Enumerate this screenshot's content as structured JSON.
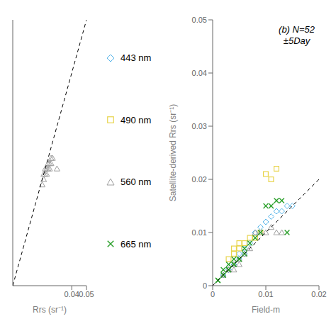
{
  "chart_data": [
    {
      "type": "scatter",
      "xlabel": "Rrs (sr⁻¹)",
      "xlim": [
        0,
        0.05
      ],
      "ylim": [
        0,
        0.05
      ],
      "xticks": [
        0.04,
        0.05
      ],
      "yticks": [],
      "grid": false,
      "series": [
        {
          "color": "#A0A0A0",
          "marker": "triangle",
          "x": [
            0.02,
            0.021,
            0.021,
            0.022,
            0.022,
            0.023,
            0.023,
            0.024,
            0.024,
            0.025,
            0.025,
            0.026,
            0.026,
            0.027,
            0.03
          ],
          "values": [
            0.019,
            0.02,
            0.021,
            0.021,
            0.022,
            0.021,
            0.022,
            0.022,
            0.023,
            0.022,
            0.023,
            0.024,
            0.023,
            0.024,
            0.022
          ]
        },
        {
          "type": "line",
          "line_style": "dashed",
          "color": "#000000",
          "x": [
            0,
            0.05
          ],
          "values": [
            0,
            0.05
          ]
        }
      ]
    },
    {
      "type": "scatter",
      "xlabel": "Field-m",
      "ylabel": "Satellite-derived Rrs (sr⁻¹)",
      "annotation": "(b) N=52\n±5Day",
      "xlim": [
        0,
        0.02
      ],
      "ylim": [
        0,
        0.05
      ],
      "xticks": [
        0,
        0.01,
        0.02
      ],
      "yticks": [
        0,
        0.01,
        0.02,
        0.03,
        0.04,
        0.05
      ],
      "grid": false,
      "series": [
        {
          "name": "443 nm",
          "color": "#56B4E9",
          "marker": "diamond",
          "x": [
            0.002,
            0.003,
            0.003,
            0.004,
            0.004,
            0.005,
            0.005,
            0.005,
            0.006,
            0.006,
            0.007,
            0.008,
            0.009,
            0.01,
            0.011,
            0.012,
            0.013,
            0.014,
            0.015
          ],
          "values": [
            0.002,
            0.003,
            0.003,
            0.004,
            0.004,
            0.005,
            0.005,
            0.006,
            0.006,
            0.007,
            0.008,
            0.01,
            0.011,
            0.012,
            0.013,
            0.014,
            0.014,
            0.015,
            0.015
          ]
        },
        {
          "name": "490 nm",
          "color": "#E8D44D",
          "marker": "square",
          "x": [
            0.003,
            0.004,
            0.004,
            0.005,
            0.005,
            0.006,
            0.007,
            0.008,
            0.009,
            0.01,
            0.011,
            0.012
          ],
          "values": [
            0.005,
            0.006,
            0.007,
            0.007,
            0.008,
            0.008,
            0.009,
            0.009,
            0.01,
            0.021,
            0.02,
            0.022
          ]
        },
        {
          "name": "560 nm",
          "color": "#A0A0A0",
          "marker": "triangle",
          "x": [
            0.002,
            0.003,
            0.003,
            0.004,
            0.004,
            0.005,
            0.005,
            0.006,
            0.007,
            0.008,
            0.009,
            0.01,
            0.011,
            0.012,
            0.013
          ],
          "values": [
            0.002,
            0.003,
            0.003,
            0.003,
            0.004,
            0.004,
            0.005,
            0.006,
            0.007,
            0.01,
            0.01,
            0.01,
            0.011,
            0.01,
            0.01
          ]
        },
        {
          "name": "665 nm",
          "color": "#2CA02C",
          "marker": "x",
          "x": [
            0.001,
            0.001,
            0.002,
            0.002,
            0.002,
            0.003,
            0.003,
            0.003,
            0.004,
            0.004,
            0.004,
            0.005,
            0.005,
            0.006,
            0.006,
            0.007,
            0.008,
            0.009,
            0.01,
            0.011,
            0.012,
            0.013,
            0.014
          ],
          "values": [
            0.001,
            0.001,
            0.002,
            0.002,
            0.003,
            0.003,
            0.003,
            0.004,
            0.004,
            0.004,
            0.005,
            0.005,
            0.005,
            0.006,
            0.007,
            0.008,
            0.009,
            0.01,
            0.015,
            0.015,
            0.016,
            0.016,
            0.01
          ]
        },
        {
          "type": "line",
          "line_style": "dashed",
          "color": "#000000",
          "x": [
            0,
            0.05
          ],
          "values": [
            0,
            0.05
          ]
        }
      ]
    }
  ]
}
